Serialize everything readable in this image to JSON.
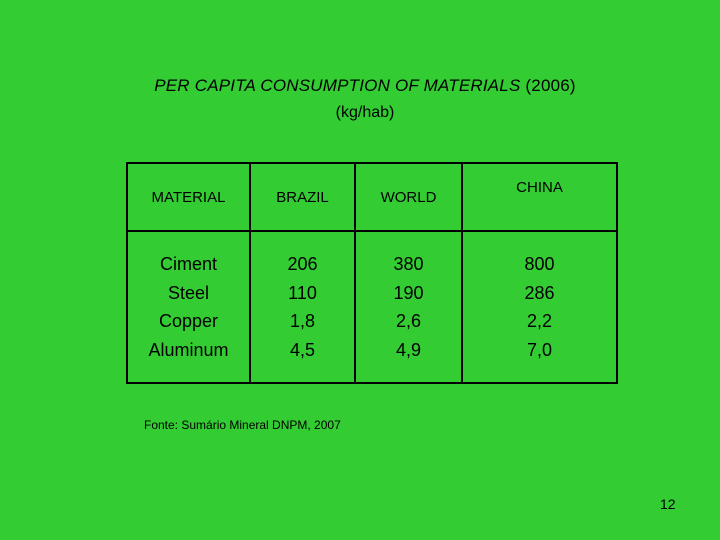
{
  "title": {
    "italic": "PER CAPITA  CONSUMPTION OF MATERIALS",
    "year": "(2006)",
    "unit": "(kg/hab)"
  },
  "table": {
    "headers": [
      "MATERIAL",
      "BRAZIL",
      "WORLD",
      "CHINA"
    ],
    "materials": [
      "Ciment",
      "Steel",
      "Copper",
      "Aluminum"
    ],
    "brazil": [
      "206",
      "110",
      "1,8",
      "4,5"
    ],
    "world": [
      "380",
      "190",
      "2,6",
      "4,9"
    ],
    "china": [
      "800",
      "286",
      "2,2",
      "7,0"
    ]
  },
  "source": "Fonte: Sumário Mineral DNPM, 2007",
  "page_number": "12"
}
